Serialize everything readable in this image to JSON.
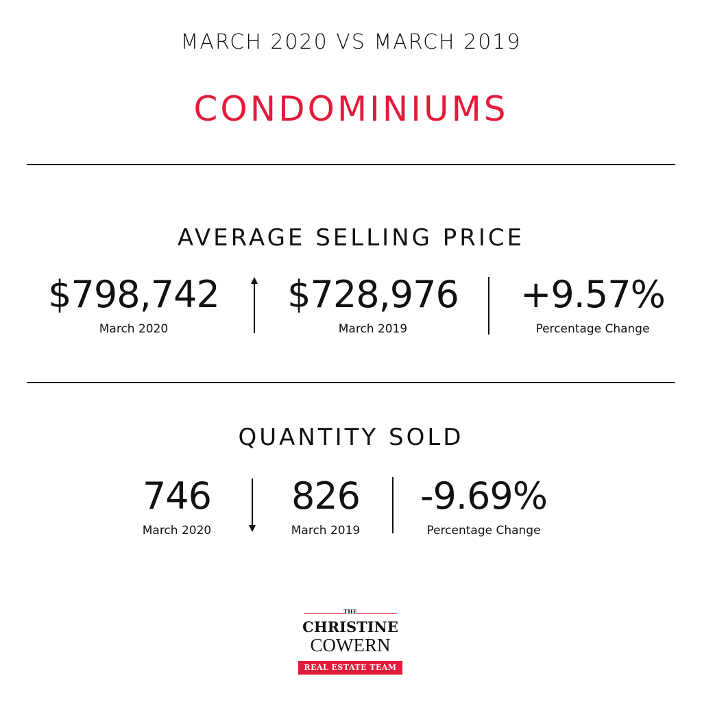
{
  "header": {
    "subtitle": "MARCH 2020 VS MARCH 2019",
    "title": "CONDOMINIUMS"
  },
  "average_selling_price": {
    "title": "AVERAGE SELLING PRICE",
    "current": {
      "value": "$798,742",
      "label": "March 2020"
    },
    "previous": {
      "value": "$728,976",
      "label": "March 2019"
    },
    "change": {
      "value": "+9.57%",
      "label": "Percentage Change"
    },
    "trend": "up"
  },
  "quantity_sold": {
    "title": "QUANTITY SOLD",
    "current": {
      "value": "746",
      "label": "March 2020"
    },
    "previous": {
      "value": "826",
      "label": "March 2019"
    },
    "change": {
      "value": "-9.69%",
      "label": "Percentage Change"
    },
    "trend": "down"
  },
  "logo": {
    "the": "THE",
    "line1": "CHRISTINE",
    "line2": "COWERN",
    "banner": "REAL ESTATE TEAM"
  },
  "colors": {
    "accent": "#e31b3a",
    "text": "#111111",
    "background": "#ffffff"
  }
}
